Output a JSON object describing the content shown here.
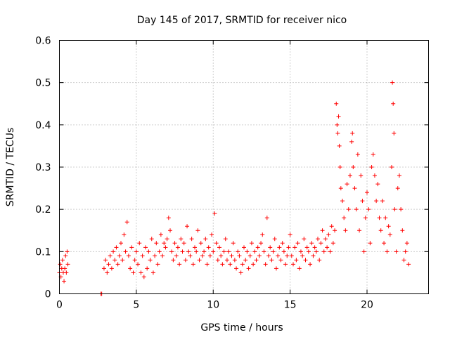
{
  "chart_data": {
    "type": "scatter",
    "title": "Day 145 of 2017, SRMTID for receiver nico",
    "xlabel": "GPS time / hours",
    "ylabel": "SRMTID / TECUs",
    "xlim": [
      0,
      24
    ],
    "ylim": [
      0,
      0.6
    ],
    "x_ticks": [
      0,
      5,
      10,
      15,
      20
    ],
    "x_tick_labels": [
      "0",
      "5",
      "10",
      "15",
      "20"
    ],
    "y_ticks": [
      0,
      0.1,
      0.2,
      0.3,
      0.4,
      0.5,
      0.6
    ],
    "y_tick_labels": [
      "0",
      "0.1",
      "0.2",
      "0.3",
      "0.4",
      "0.5",
      "0.6"
    ],
    "grid": true,
    "marker": "plus",
    "series": [
      {
        "name": "SRMTID",
        "color": "#ff0000",
        "x": [
          0.0,
          0.05,
          0.1,
          0.15,
          0.2,
          0.25,
          0.3,
          0.35,
          0.4,
          0.45,
          0.5,
          0.55,
          2.7,
          2.75,
          2.9,
          3.0,
          3.1,
          3.2,
          3.3,
          3.4,
          3.5,
          3.6,
          3.7,
          3.8,
          3.9,
          4.0,
          4.1,
          4.2,
          4.3,
          4.4,
          4.5,
          4.6,
          4.7,
          4.8,
          4.9,
          5.0,
          5.1,
          5.2,
          5.3,
          5.4,
          5.5,
          5.6,
          5.7,
          5.8,
          5.9,
          6.0,
          6.1,
          6.2,
          6.3,
          6.4,
          6.5,
          6.6,
          6.7,
          6.8,
          6.9,
          7.0,
          7.1,
          7.2,
          7.3,
          7.4,
          7.5,
          7.6,
          7.7,
          7.8,
          7.9,
          8.0,
          8.1,
          8.2,
          8.3,
          8.4,
          8.5,
          8.6,
          8.7,
          8.8,
          8.9,
          9.0,
          9.1,
          9.2,
          9.3,
          9.4,
          9.5,
          9.6,
          9.7,
          9.8,
          9.9,
          10.0,
          10.1,
          10.2,
          10.3,
          10.4,
          10.5,
          10.6,
          10.7,
          10.8,
          10.9,
          11.0,
          11.1,
          11.2,
          11.3,
          11.4,
          11.5,
          11.6,
          11.7,
          11.8,
          11.9,
          12.0,
          12.1,
          12.2,
          12.3,
          12.4,
          12.5,
          12.6,
          12.7,
          12.8,
          12.9,
          13.0,
          13.1,
          13.2,
          13.3,
          13.4,
          13.5,
          13.6,
          13.7,
          13.8,
          13.9,
          14.0,
          14.1,
          14.2,
          14.3,
          14.4,
          14.5,
          14.6,
          14.7,
          14.8,
          14.9,
          15.0,
          15.1,
          15.2,
          15.3,
          15.4,
          15.5,
          15.6,
          15.7,
          15.8,
          15.9,
          16.0,
          16.1,
          16.2,
          16.3,
          16.4,
          16.5,
          16.6,
          16.7,
          16.8,
          16.9,
          17.0,
          17.1,
          17.2,
          17.3,
          17.4,
          17.5,
          17.6,
          17.7,
          17.8,
          17.9,
          18.0,
          18.05,
          18.1,
          18.15,
          18.2,
          18.25,
          18.3,
          18.4,
          18.5,
          18.6,
          18.7,
          18.8,
          18.9,
          19.0,
          19.05,
          19.1,
          19.2,
          19.3,
          19.4,
          19.5,
          19.6,
          19.7,
          19.8,
          19.9,
          20.0,
          20.1,
          20.2,
          20.3,
          20.4,
          20.5,
          20.6,
          20.7,
          20.8,
          20.9,
          21.0,
          21.1,
          21.2,
          21.3,
          21.4,
          21.5,
          21.6,
          21.65,
          21.7,
          21.75,
          21.8,
          21.9,
          22.0,
          22.1,
          22.2,
          22.3,
          22.4,
          22.5,
          22.6,
          22.7
        ],
        "y": [
          0.05,
          0.07,
          0.04,
          0.06,
          0.08,
          0.05,
          0.03,
          0.06,
          0.09,
          0.05,
          0.1,
          0.07,
          0.0,
          0.0,
          0.06,
          0.08,
          0.05,
          0.07,
          0.09,
          0.06,
          0.1,
          0.08,
          0.11,
          0.07,
          0.09,
          0.12,
          0.08,
          0.14,
          0.1,
          0.17,
          0.09,
          0.06,
          0.11,
          0.05,
          0.08,
          0.1,
          0.07,
          0.12,
          0.05,
          0.09,
          0.04,
          0.11,
          0.06,
          0.1,
          0.08,
          0.13,
          0.05,
          0.09,
          0.12,
          0.07,
          0.1,
          0.14,
          0.09,
          0.12,
          0.11,
          0.13,
          0.18,
          0.15,
          0.1,
          0.08,
          0.12,
          0.09,
          0.11,
          0.07,
          0.13,
          0.1,
          0.12,
          0.08,
          0.16,
          0.1,
          0.09,
          0.13,
          0.07,
          0.11,
          0.1,
          0.15,
          0.08,
          0.12,
          0.09,
          0.1,
          0.13,
          0.07,
          0.11,
          0.09,
          0.14,
          0.1,
          0.19,
          0.12,
          0.08,
          0.11,
          0.09,
          0.07,
          0.1,
          0.13,
          0.08,
          0.1,
          0.07,
          0.09,
          0.12,
          0.08,
          0.06,
          0.1,
          0.09,
          0.05,
          0.07,
          0.11,
          0.08,
          0.1,
          0.06,
          0.09,
          0.12,
          0.07,
          0.1,
          0.08,
          0.11,
          0.09,
          0.12,
          0.14,
          0.1,
          0.07,
          0.18,
          0.09,
          0.11,
          0.08,
          0.1,
          0.13,
          0.06,
          0.09,
          0.11,
          0.08,
          0.12,
          0.1,
          0.07,
          0.09,
          0.11,
          0.14,
          0.09,
          0.07,
          0.11,
          0.08,
          0.12,
          0.06,
          0.1,
          0.09,
          0.13,
          0.08,
          0.11,
          0.1,
          0.07,
          0.12,
          0.09,
          0.11,
          0.1,
          0.13,
          0.08,
          0.12,
          0.15,
          0.1,
          0.13,
          0.11,
          0.14,
          0.1,
          0.16,
          0.12,
          0.15,
          0.45,
          0.4,
          0.38,
          0.42,
          0.35,
          0.3,
          0.25,
          0.22,
          0.18,
          0.15,
          0.26,
          0.2,
          0.28,
          0.36,
          0.38,
          0.3,
          0.25,
          0.2,
          0.33,
          0.15,
          0.28,
          0.22,
          0.1,
          0.18,
          0.24,
          0.2,
          0.12,
          0.3,
          0.33,
          0.28,
          0.22,
          0.26,
          0.18,
          0.15,
          0.22,
          0.12,
          0.18,
          0.1,
          0.16,
          0.14,
          0.3,
          0.5,
          0.45,
          0.38,
          0.2,
          0.1,
          0.25,
          0.28,
          0.2,
          0.15,
          0.08,
          0.1,
          0.12,
          0.07
        ]
      }
    ]
  }
}
